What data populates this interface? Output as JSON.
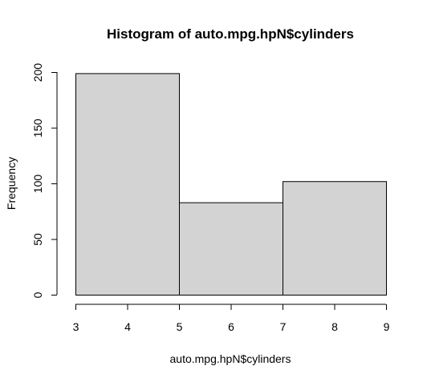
{
  "chart_data": {
    "type": "bar",
    "title": "Histogram of auto.mpg.hpN$cylinders",
    "xlabel": "auto.mpg.hpN$cylinders",
    "ylabel": "Frequency",
    "bins": [
      {
        "from": 3,
        "to": 5,
        "value": 199
      },
      {
        "from": 5,
        "to": 7,
        "value": 83
      },
      {
        "from": 7,
        "to": 9,
        "value": 102
      }
    ],
    "xlim": [
      3,
      9
    ],
    "ylim": [
      0,
      200
    ],
    "x_ticks": [
      3,
      4,
      5,
      6,
      7,
      8,
      9
    ],
    "y_ticks": [
      0,
      50,
      100,
      150,
      200
    ],
    "bar_color": "#d3d3d3",
    "grid": false
  }
}
